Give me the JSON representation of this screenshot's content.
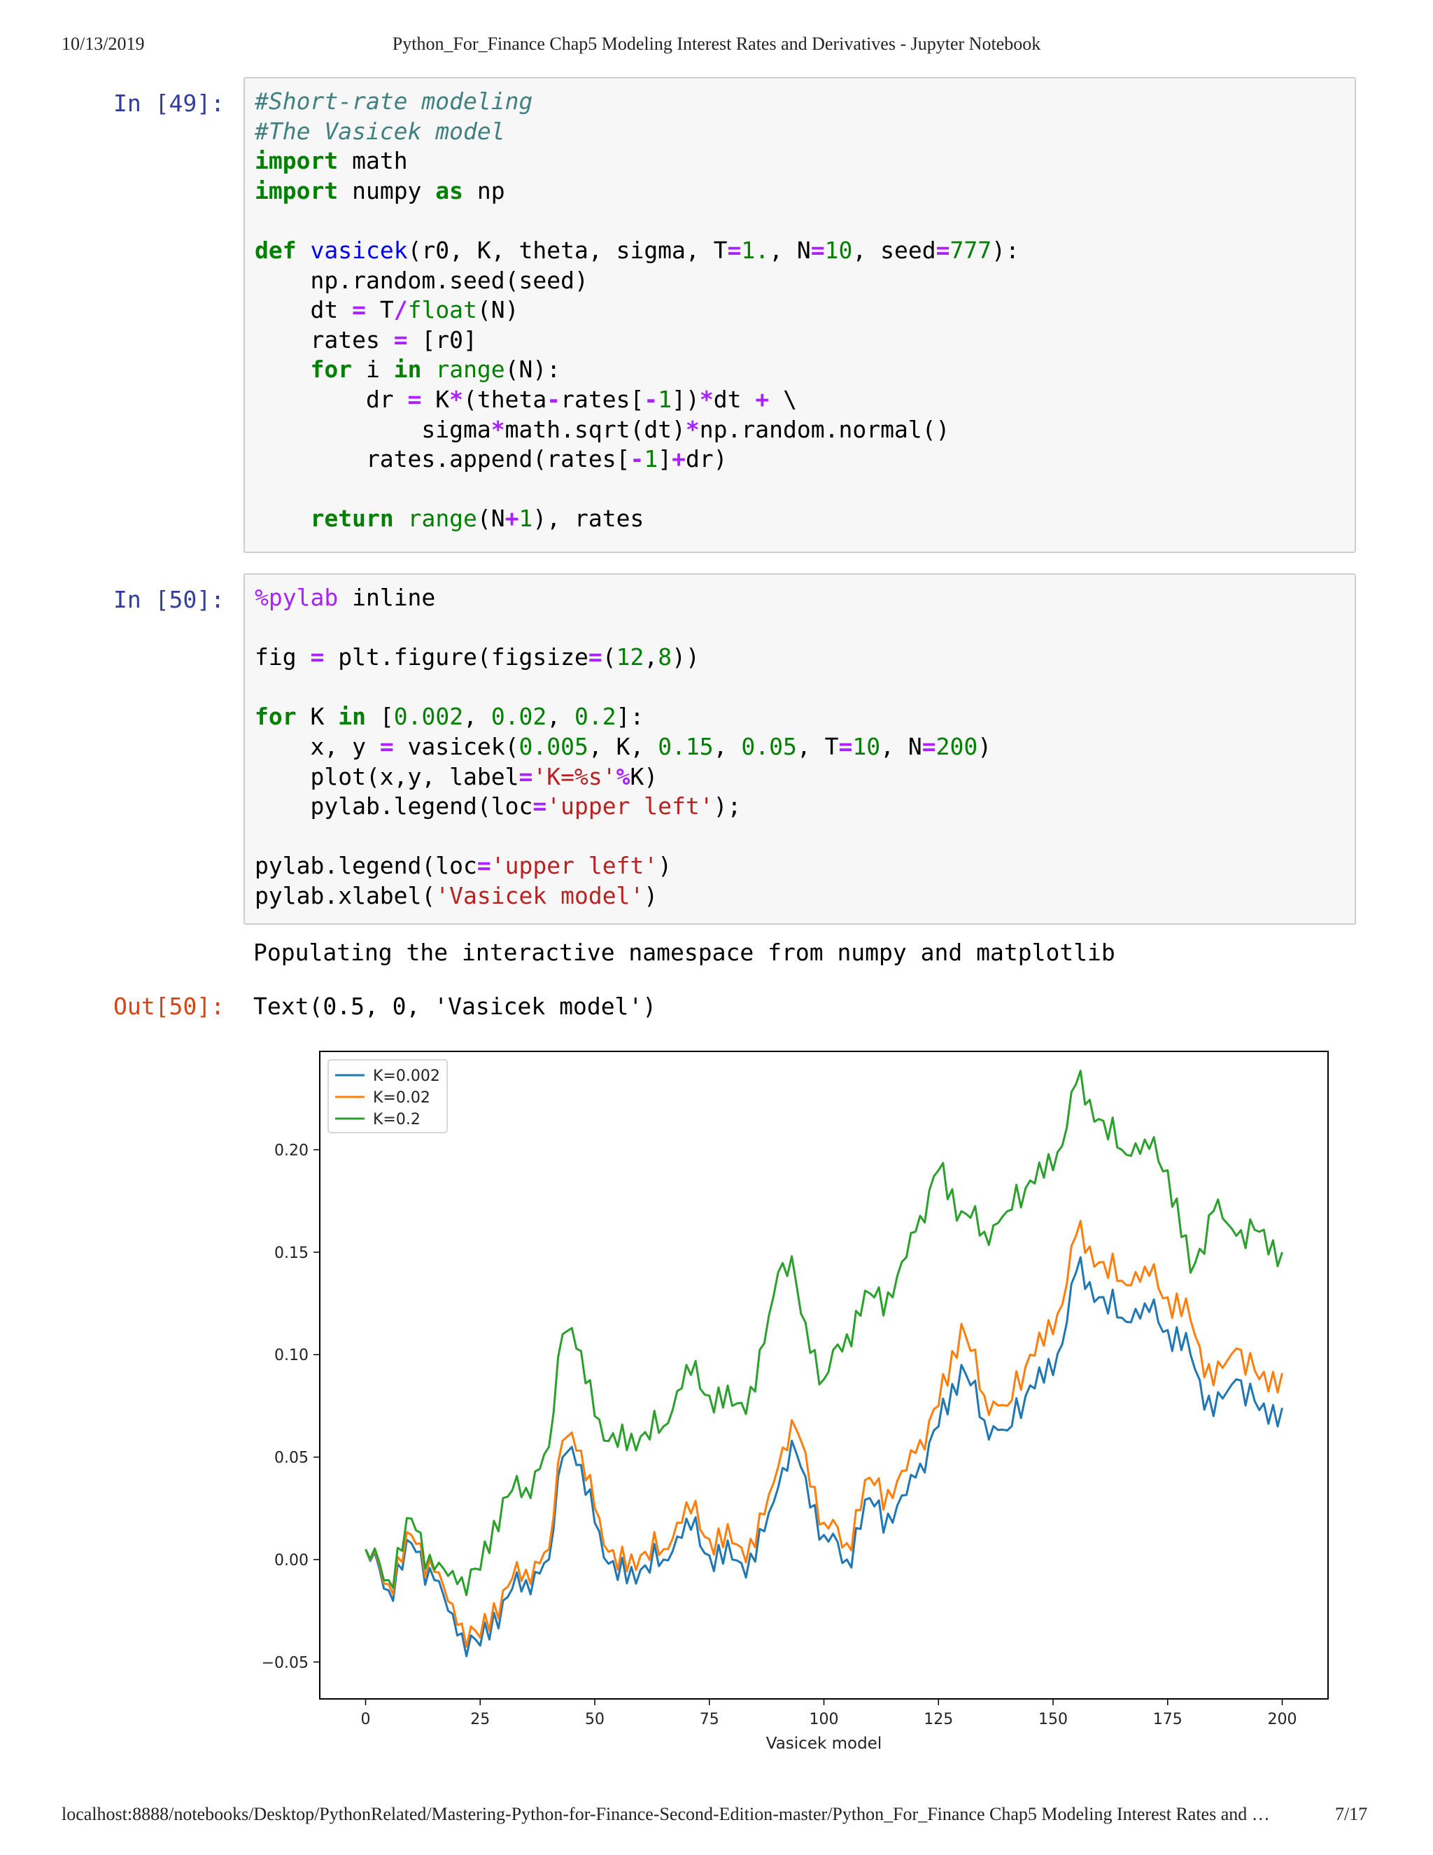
{
  "page_header": {
    "date": "10/13/2019",
    "title": "Python_For_Finance Chap5 Modeling Interest Rates and Derivatives - Jupyter Notebook"
  },
  "page_footer": {
    "url": "localhost:8888/notebooks/Desktop/PythonRelated/Mastering-Python-for-Finance-Second-Edition-master/Python_For_Finance Chap5 Modeling Interest Rates and …",
    "page": "7/17"
  },
  "cells": [
    {
      "prompt": "In [49]:",
      "lines": [
        "#Short-rate modeling",
        "#The Vasicek model",
        "import math",
        "import numpy as np",
        "",
        "def vasicek(r0, K, theta, sigma, T=1., N=10, seed=777):",
        "    np.random.seed(seed)",
        "    dt = T/float(N)",
        "    rates = [r0]",
        "    for i in range(N):",
        "        dr = K*(theta-rates[-1])*dt + \\",
        "            sigma*math.sqrt(dt)*np.random.normal()",
        "        rates.append(rates[-1]+dr)",
        "",
        "    return range(N+1), rates"
      ]
    },
    {
      "prompt": "In [50]:",
      "lines": [
        "%pylab inline",
        "",
        "fig = plt.figure(figsize=(12,8))",
        "",
        "for K in [0.002, 0.02, 0.2]:",
        "    x, y = vasicek(0.005, K, 0.15, 0.05, T=10, N=200)",
        "    plot(x,y, label='K=%s'%K)",
        "    pylab.legend(loc='upper left');",
        "",
        "pylab.legend(loc='upper left')",
        "pylab.xlabel('Vasicek model')"
      ],
      "stdout": "Populating the interactive namespace from numpy and matplotlib",
      "out_prompt": "Out[50]:",
      "out_text": "Text(0.5, 0, 'Vasicek model')"
    }
  ],
  "chart_data": {
    "type": "line",
    "xlabel": "Vasicek model",
    "xlim": [
      -10,
      210
    ],
    "ylim": [
      -0.068,
      0.248
    ],
    "xticks": [
      "0",
      "25",
      "50",
      "75",
      "100",
      "125",
      "150",
      "175",
      "200"
    ],
    "yticks": [
      "-0.05",
      "0.00",
      "0.05",
      "0.10",
      "0.15",
      "0.20"
    ],
    "grid": false,
    "legend_position": "upper left",
    "colors": {
      "K=0.002": "#1f77b4",
      "K=0.02": "#ff7f0e",
      "K=0.2": "#2ca02c"
    },
    "series": [
      {
        "name": "K=0.002",
        "x": [
          0,
          5,
          10,
          15,
          20,
          25,
          30,
          35,
          40,
          43,
          45,
          50,
          55,
          60,
          65,
          70,
          75,
          80,
          85,
          90,
          93,
          95,
          100,
          105,
          110,
          115,
          120,
          125,
          130,
          135,
          140,
          145,
          150,
          155,
          160,
          165,
          170,
          175,
          180,
          185,
          190,
          195,
          200
        ],
        "y": [
          0.005,
          -0.015,
          0.008,
          -0.01,
          -0.037,
          -0.042,
          -0.02,
          -0.01,
          0.0,
          0.05,
          0.055,
          0.018,
          -0.01,
          -0.005,
          0.0,
          0.02,
          0.002,
          0.0,
          -0.001,
          0.035,
          0.058,
          0.045,
          0.012,
          0.0,
          0.03,
          0.018,
          0.04,
          0.065,
          0.095,
          0.068,
          0.063,
          0.085,
          0.09,
          0.14,
          0.128,
          0.118,
          0.125,
          0.112,
          0.1,
          0.07,
          0.088,
          0.073,
          0.074
        ]
      },
      {
        "name": "K=0.02",
        "x": [
          0,
          5,
          10,
          15,
          20,
          25,
          30,
          35,
          40,
          43,
          45,
          50,
          55,
          60,
          65,
          70,
          75,
          80,
          85,
          90,
          93,
          95,
          100,
          105,
          110,
          115,
          120,
          125,
          130,
          135,
          140,
          145,
          150,
          155,
          160,
          165,
          170,
          175,
          180,
          185,
          190,
          195,
          200
        ],
        "y": [
          0.005,
          -0.012,
          0.012,
          -0.006,
          -0.032,
          -0.038,
          -0.015,
          -0.005,
          0.005,
          0.058,
          0.062,
          0.025,
          -0.005,
          0.002,
          0.005,
          0.028,
          0.01,
          0.008,
          0.006,
          0.045,
          0.068,
          0.058,
          0.018,
          0.008,
          0.04,
          0.03,
          0.052,
          0.075,
          0.115,
          0.08,
          0.075,
          0.1,
          0.11,
          0.158,
          0.145,
          0.136,
          0.143,
          0.128,
          0.117,
          0.085,
          0.103,
          0.088,
          0.091
        ]
      },
      {
        "name": "K=0.2",
        "x": [
          0,
          5,
          10,
          15,
          20,
          25,
          30,
          35,
          40,
          43,
          45,
          50,
          55,
          60,
          65,
          70,
          75,
          80,
          85,
          90,
          93,
          95,
          100,
          105,
          110,
          115,
          120,
          125,
          130,
          135,
          140,
          145,
          150,
          155,
          160,
          165,
          170,
          175,
          180,
          185,
          190,
          195,
          200
        ],
        "y": [
          0.005,
          -0.01,
          0.02,
          -0.005,
          -0.012,
          -0.005,
          0.03,
          0.035,
          0.055,
          0.11,
          0.113,
          0.07,
          0.055,
          0.06,
          0.065,
          0.095,
          0.08,
          0.075,
          0.082,
          0.14,
          0.148,
          0.12,
          0.088,
          0.11,
          0.13,
          0.128,
          0.16,
          0.19,
          0.17,
          0.16,
          0.17,
          0.185,
          0.19,
          0.232,
          0.215,
          0.2,
          0.205,
          0.19,
          0.14,
          0.17,
          0.158,
          0.16,
          0.15
        ]
      }
    ]
  }
}
